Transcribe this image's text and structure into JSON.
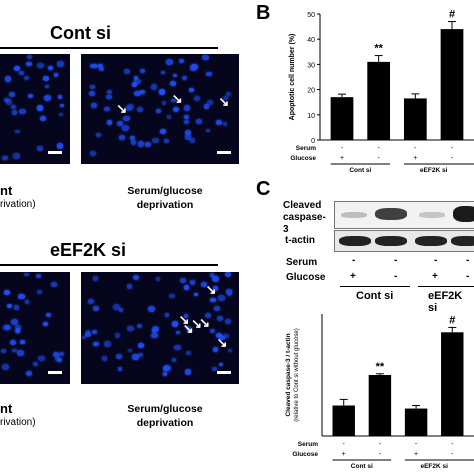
{
  "panel_a": {
    "top_header": "Cont si",
    "bottom_header": "eEF2K si",
    "caption_left_top_1": "nt",
    "caption_left_top_2": "rivation)",
    "caption_right_top": "Serum/glucose deprivation",
    "caption_left_bottom_1": "nt",
    "caption_left_bottom_2": "rivation)",
    "caption_right_bottom": "Serum/glucose deprivation"
  },
  "panel_b": {
    "letter": "B",
    "chart_data": {
      "type": "bar",
      "ylabel": "Apoptotic cell number (%)",
      "ylim": [
        0,
        50
      ],
      "yticks": [
        "0",
        "10",
        "20",
        "30",
        "40",
        "50"
      ],
      "categories": [
        "Cont si / serum- glucose+",
        "Cont si / serum- glucose-",
        "eEF2K si / serum- glucose+",
        "eEF2K si / serum- glucose-"
      ],
      "values": [
        17,
        31,
        16.5,
        44
      ],
      "errors": [
        1.2,
        2.5,
        1.8,
        3
      ],
      "annotations": [
        "",
        "**",
        "",
        "#"
      ],
      "row_labels": [
        "Serum",
        "Glucose"
      ],
      "serum": [
        "-",
        "-",
        "-",
        "-"
      ],
      "glucose": [
        "+",
        "-",
        "+",
        "-"
      ],
      "groups": [
        "Cont si",
        "eEF2K si"
      ]
    }
  },
  "panel_c": {
    "letter": "C",
    "blot_label_1": "Cleaved caspase-3",
    "blot_label_2": "t-actin",
    "row_serum": "Serum",
    "row_glucose": "Glucose",
    "serum": [
      "-",
      "-",
      "-",
      "-"
    ],
    "glucose": [
      "+",
      "-",
      "+",
      "-"
    ],
    "group_1": "Cont si",
    "group_2": "eEF2K si",
    "chart_data": {
      "type": "bar",
      "ylabel": "Cleaved caspase-3 / t-actin",
      "ylabel2": "(relative to Cont si without glucose)",
      "ylim": [
        0,
        2
      ],
      "categories": [
        "Cont si / serum- glucose+",
        "Cont si / serum- glucose-",
        "eEF2K si / serum- glucose+",
        "eEF2K si / serum- glucose-"
      ],
      "values": [
        0.5,
        1.0,
        0.45,
        1.7
      ],
      "errors": [
        0.1,
        0.02,
        0.05,
        0.08
      ],
      "annotations": [
        "",
        "**",
        "",
        "#"
      ],
      "row_labels": [
        "Serum",
        "Glucose"
      ],
      "serum": [
        "-",
        "-",
        "-",
        "-"
      ],
      "glucose": [
        "+",
        "-",
        "+",
        "-"
      ],
      "groups": [
        "Cont si",
        "eEF2K si"
      ]
    }
  }
}
